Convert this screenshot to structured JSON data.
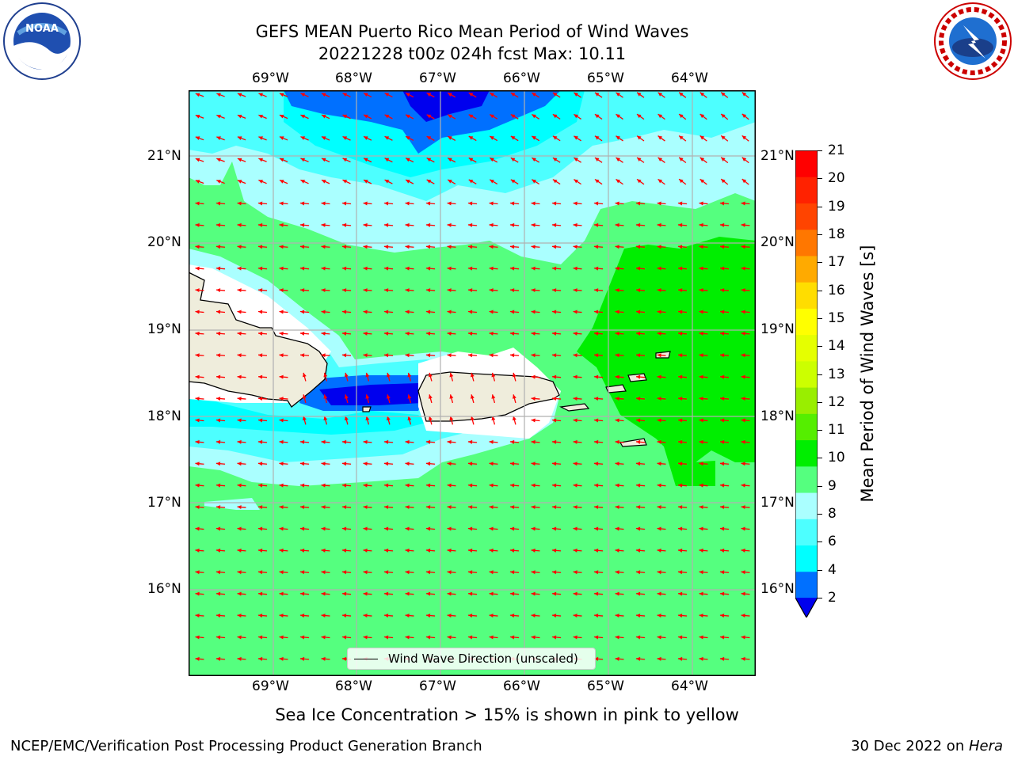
{
  "title": {
    "line1": "GEFS MEAN Puerto Rico Mean Period of Wind Waves",
    "line2": "20221228 t00z 024h fcst   Max: 10.11"
  },
  "logos": {
    "left": {
      "name": "noaa-logo",
      "text": "NOAA"
    },
    "right": {
      "name": "nws-logo",
      "text": "NATIONAL WEATHER SERVICE"
    }
  },
  "map": {
    "lon_labels": [
      "69°W",
      "68°W",
      "67°W",
      "66°W",
      "65°W",
      "64°W"
    ],
    "lat_labels": [
      "21°N",
      "20°N",
      "19°N",
      "18°N",
      "17°N",
      "16°N"
    ],
    "legend": "Wind Wave Direction (unscaled)",
    "colors": {
      "land": "#efeddc",
      "arrow": "#ff0000",
      "grid": "#b0b0b0"
    }
  },
  "colorbar": {
    "label": "Mean Period of Wind Waves [s]",
    "ticks": [
      "21",
      "20",
      "19",
      "18",
      "17",
      "16",
      "15",
      "14",
      "13",
      "12",
      "11",
      "10",
      "9",
      "8",
      "6",
      "4",
      "2"
    ],
    "colors": [
      "#0000ee",
      "#0070ff",
      "#00ffff",
      "#4dffff",
      "#aaffff",
      "#55ff7f",
      "#00ee00",
      "#55ee00",
      "#99ee00",
      "#ccff00",
      "#e5ff00",
      "#ffff00",
      "#ffdd00",
      "#ffaa00",
      "#ff7700",
      "#ff4400",
      "#ff2200",
      "#ff0000"
    ]
  },
  "caption": "Sea Ice Concentration > 15% is shown in pink to yellow",
  "footer": {
    "left": "NCEP/EMC/Verification Post Processing Product Generation Branch",
    "right_date": "30 Dec 2022 on ",
    "right_machine": "Hera"
  }
}
